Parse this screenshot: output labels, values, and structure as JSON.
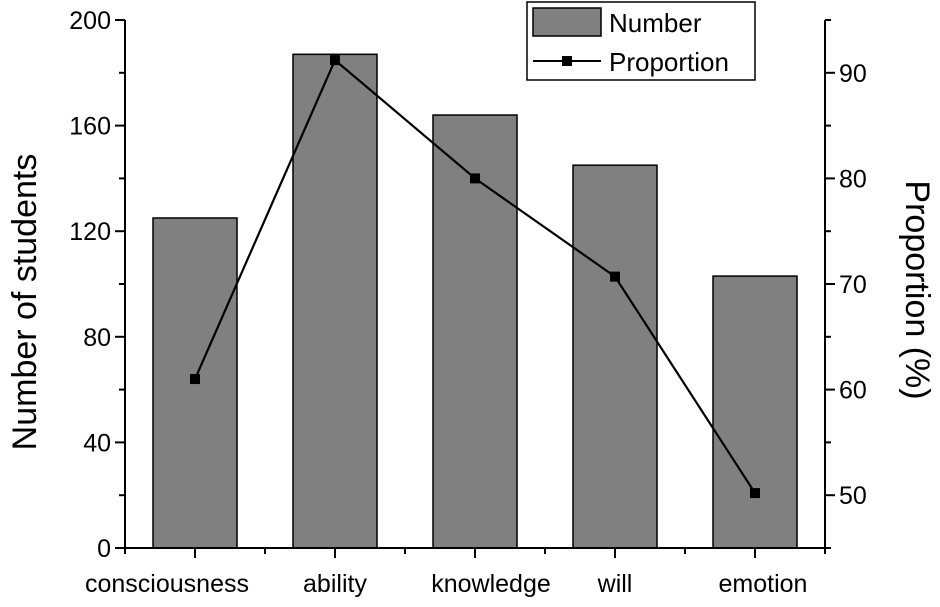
{
  "chart_data": {
    "type": "bar",
    "categories": [
      "consciousness",
      "ability",
      "knowledge",
      "will",
      "emotion"
    ],
    "series": [
      {
        "name": "Number",
        "type": "bar",
        "axis": "left",
        "values": [
          125,
          187,
          164,
          145,
          103
        ]
      },
      {
        "name": "Proportion",
        "type": "line",
        "axis": "right",
        "values": [
          61.0,
          91.2,
          80.0,
          70.7,
          50.2
        ]
      }
    ],
    "ylabel": "Number of students",
    "y2label": "Proportion (%)",
    "ylim": [
      0,
      200
    ],
    "y2lim": [
      45,
      95
    ],
    "yticks": [
      0,
      40,
      80,
      120,
      160,
      200
    ],
    "y2ticks": [
      50,
      60,
      70,
      80,
      90
    ],
    "legend_position": "top-right",
    "grid": false,
    "colors": {
      "bar_fill": "#808080",
      "bar_stroke": "#000000",
      "line": "#000000",
      "marker": "#000000"
    }
  }
}
